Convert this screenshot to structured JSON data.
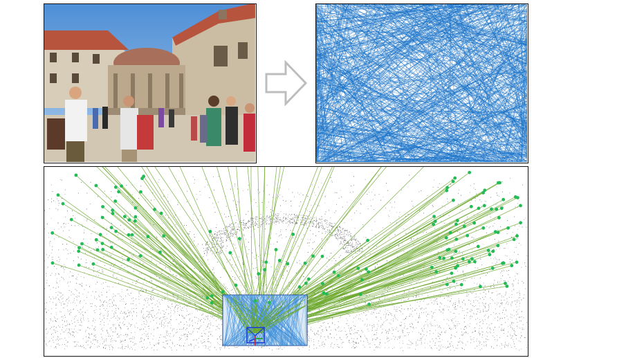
{
  "figure": {
    "top_left": {
      "content": "photo",
      "description_icon": "street-photo-icon"
    },
    "arrow": {
      "icon": "right-arrow-icon",
      "color": "#bdbdbd"
    },
    "top_right": {
      "content": "projected-lines",
      "line_color": "#1a73c8"
    },
    "bottom": {
      "content": "point-cloud-with-rays",
      "point_color": "#333333",
      "landmark_color": "#22bb55",
      "ray_color": "#6aa82a",
      "inset_color": "#3f8fd8",
      "camera_colors": [
        "#1d3fd6",
        "#e02020",
        "#20a020"
      ]
    }
  },
  "colors": {
    "sky": "#6fa6dc",
    "stone": "#c9bba3",
    "dome": "#b07a5a",
    "roof": "#b6543e"
  }
}
